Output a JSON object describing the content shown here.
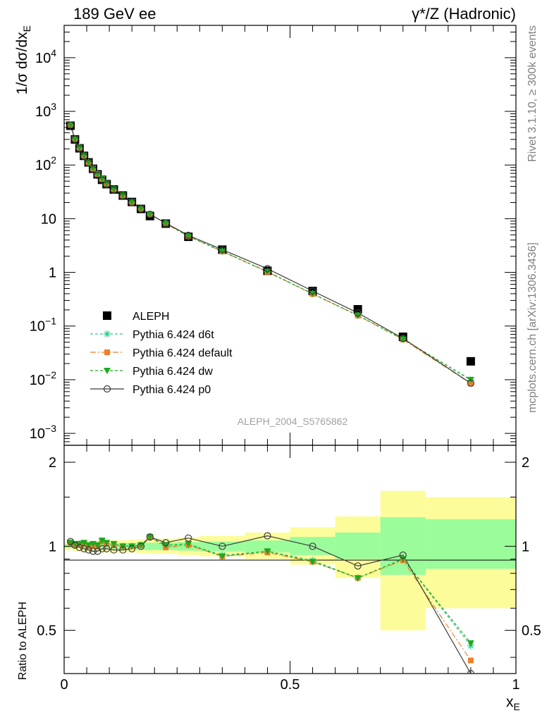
{
  "header": {
    "left": "189 GeV ee",
    "right": "γ*/Z (Hadronic)"
  },
  "side": {
    "rivet": "Rivet 3.1.10, ≥ 300k events",
    "mcplots": "mcplots.cern.ch [arXiv:1306.3436]"
  },
  "watermark": "ALEPH_2004_S5765862",
  "colors": {
    "data": "#000000",
    "d6t": "#2fd08a",
    "default": "#f07f2a",
    "dw": "#1ea81e",
    "p0": "#3a3a3a",
    "band_inner": "#9bfc9b",
    "band_outer": "#fcfc9b"
  },
  "chart_data": [
    {
      "type": "scatter",
      "panel": "main",
      "ylabel": "1/σ dσ/dx_E",
      "yscale": "log",
      "ylim": [
        0.0006,
        40000
      ],
      "xlim": [
        0,
        1
      ],
      "y_ticklabels": [
        "10^-3",
        "10^-2",
        "10^-1",
        "1",
        "10",
        "10^2",
        "10^3",
        "10^4"
      ],
      "legend_position": "lower-left",
      "x": [
        0.014,
        0.024,
        0.034,
        0.044,
        0.054,
        0.064,
        0.074,
        0.084,
        0.094,
        0.11,
        0.13,
        0.15,
        0.17,
        0.19,
        0.225,
        0.275,
        0.35,
        0.45,
        0.55,
        0.65,
        0.75,
        0.9
      ],
      "series": [
        {
          "name": "ALEPH",
          "key": "data",
          "marker": "square",
          "values": [
            540,
            300,
            205,
            148,
            112,
            85,
            67,
            53,
            44,
            35,
            27,
            20.5,
            15.2,
            11.2,
            8.1,
            4.6,
            2.65,
            1.07,
            0.45,
            0.205,
            0.063,
            0.022
          ]
        },
        {
          "name": "Pythia 6.424 d6t",
          "key": "d6t",
          "marker": "star",
          "values": [
            555,
            305,
            210,
            150,
            112,
            86,
            68,
            55,
            45,
            35.5,
            27.2,
            20.5,
            15.4,
            12.1,
            8.2,
            4.7,
            2.5,
            1.03,
            0.4,
            0.158,
            0.057,
            0.0098
          ]
        },
        {
          "name": "Pythia 6.424 default",
          "key": "default",
          "marker": "square-small",
          "values": [
            555,
            305,
            210,
            150,
            112,
            86,
            68,
            55,
            45,
            35.5,
            27.2,
            20.5,
            15.4,
            12.1,
            8.1,
            4.7,
            2.45,
            1.02,
            0.395,
            0.157,
            0.056,
            0.0085
          ]
        },
        {
          "name": "Pythia 6.424 dw",
          "key": "dw",
          "marker": "triangle-down",
          "values": [
            555,
            305,
            210,
            150,
            112,
            86,
            68,
            55,
            45,
            35.5,
            27.2,
            20.5,
            15.4,
            12.1,
            8.2,
            4.7,
            2.45,
            1.03,
            0.4,
            0.158,
            0.057,
            0.01
          ]
        },
        {
          "name": "Pythia 6.424 p0",
          "key": "p0",
          "marker": "circle-open",
          "values": [
            555,
            302,
            202,
            145,
            108,
            82,
            64,
            52,
            43,
            34,
            26,
            20,
            15.2,
            12.1,
            8.3,
            4.9,
            2.65,
            1.17,
            0.45,
            0.175,
            0.059,
            0.0086
          ]
        }
      ]
    },
    {
      "type": "scatter",
      "panel": "ratio",
      "ylabel": "Ratio to ALEPH",
      "xlabel": "x_E",
      "xlim": [
        0,
        1
      ],
      "ylim": [
        0.35,
        2.3
      ],
      "x_ticklabels": [
        "0",
        "0.5",
        "1"
      ],
      "y_ticklabels": [
        "0.5",
        "1",
        "2"
      ],
      "bands": {
        "edges": [
          0.0,
          0.02,
          0.04,
          0.06,
          0.08,
          0.1,
          0.12,
          0.14,
          0.16,
          0.18,
          0.2,
          0.25,
          0.3,
          0.4,
          0.5,
          0.6,
          0.7,
          0.8,
          1.0
        ],
        "inner": [
          [
            0.985,
            1.015
          ],
          [
            0.985,
            1.015
          ],
          [
            0.98,
            1.02
          ],
          [
            0.98,
            1.02
          ],
          [
            0.98,
            1.02
          ],
          [
            0.975,
            1.025
          ],
          [
            0.975,
            1.025
          ],
          [
            0.975,
            1.025
          ],
          [
            0.97,
            1.03
          ],
          [
            0.97,
            1.03
          ],
          [
            0.97,
            1.03
          ],
          [
            0.965,
            1.035
          ],
          [
            0.96,
            1.04
          ],
          [
            0.95,
            1.05
          ],
          [
            0.93,
            1.08
          ],
          [
            0.9,
            1.12
          ],
          [
            0.79,
            1.27
          ],
          [
            0.83,
            1.25
          ]
        ],
        "outer": [
          [
            0.97,
            1.03
          ],
          [
            0.96,
            1.04
          ],
          [
            0.955,
            1.045
          ],
          [
            0.955,
            1.045
          ],
          [
            0.95,
            1.05
          ],
          [
            0.95,
            1.05
          ],
          [
            0.95,
            1.05
          ],
          [
            0.95,
            1.055
          ],
          [
            0.945,
            1.06
          ],
          [
            0.94,
            1.065
          ],
          [
            0.94,
            1.065
          ],
          [
            0.93,
            1.075
          ],
          [
            0.92,
            1.09
          ],
          [
            0.9,
            1.12
          ],
          [
            0.86,
            1.17
          ],
          [
            0.77,
            1.28
          ],
          [
            0.5,
            1.58
          ],
          [
            0.6,
            1.5
          ]
        ]
      },
      "series": [
        {
          "name": "Pythia 6.424 d6t",
          "key": "d6t",
          "values": [
            1.03,
            1.01,
            1.02,
            1.02,
            1.0,
            1.01,
            1.0,
            1.04,
            1.02,
            1.01,
            1.0,
            1.0,
            1.01,
            1.08,
            1.0,
            1.01,
            0.93,
            0.96,
            0.89,
            0.77,
            0.9,
            0.44
          ]
        },
        {
          "name": "Pythia 6.424 default",
          "key": "default",
          "values": [
            1.03,
            1.01,
            1.02,
            1.02,
            1.0,
            1.01,
            1.0,
            1.04,
            1.02,
            1.01,
            1.0,
            1.0,
            1.01,
            1.08,
            0.99,
            1.01,
            0.92,
            0.95,
            0.88,
            0.77,
            0.89,
            0.39
          ]
        },
        {
          "name": "Pythia 6.424 dw",
          "key": "dw",
          "values": [
            1.03,
            1.02,
            1.02,
            1.03,
            1.01,
            1.02,
            1.01,
            1.05,
            1.03,
            1.02,
            1.0,
            1.0,
            1.01,
            1.08,
            1.01,
            1.02,
            0.92,
            0.96,
            0.88,
            0.77,
            0.9,
            0.45
          ]
        },
        {
          "name": "Pythia 6.424 p0",
          "key": "p0",
          "values": [
            1.04,
            1.01,
            0.99,
            0.98,
            0.97,
            0.96,
            0.96,
            0.98,
            0.98,
            0.97,
            0.97,
            0.98,
            1.0,
            1.08,
            1.03,
            1.07,
            1.0,
            1.09,
            1.0,
            0.85,
            0.93,
            0.35
          ]
        }
      ]
    }
  ]
}
